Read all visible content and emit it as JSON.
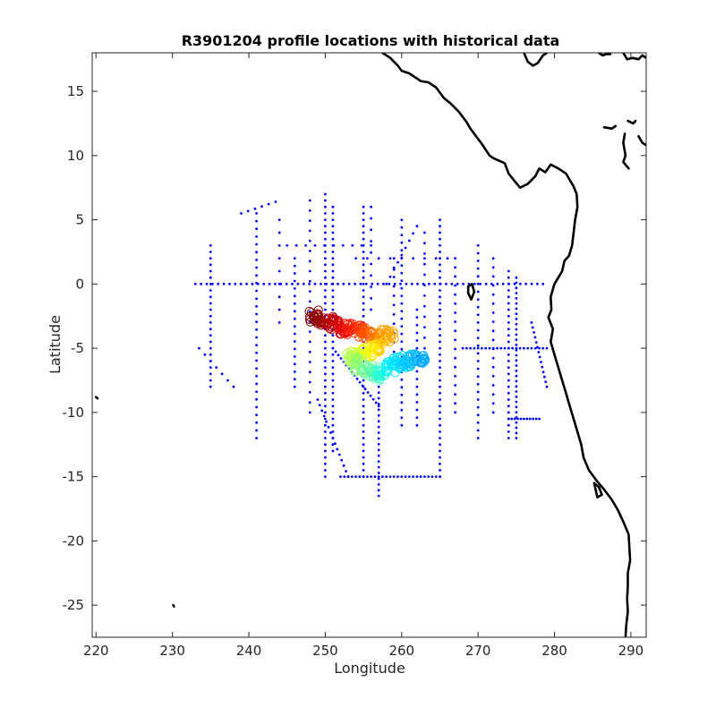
{
  "chart_data": {
    "type": "scatter",
    "title": "R3901204 profile locations with historical data",
    "xlabel": "Longitude",
    "ylabel": "Latitude",
    "xlim": [
      219.5,
      292
    ],
    "ylim": [
      -27.5,
      18
    ],
    "xticks": [
      220,
      230,
      240,
      250,
      260,
      270,
      280,
      290
    ],
    "yticks": [
      -25,
      -20,
      -15,
      -10,
      -5,
      0,
      5,
      10,
      15
    ],
    "grid": false,
    "colors": {
      "historical": "#0000ff",
      "coast": "#000000",
      "frame": "#262626"
    },
    "historical_lines": [
      {
        "from": [
          233.0,
          0.0
        ],
        "to": [
          278.5,
          0.0
        ],
        "step": 0.75
      },
      {
        "from": [
          250.0,
          7.0
        ],
        "to": [
          250.0,
          -15.0
        ],
        "step": 0.5
      },
      {
        "from": [
          251.0,
          6.0
        ],
        "to": [
          251.0,
          -13.0
        ],
        "step": 0.5
      },
      {
        "from": [
          255.0,
          6.0
        ],
        "to": [
          255.0,
          -15.0
        ],
        "step": 0.5
      },
      {
        "from": [
          265.0,
          5.0
        ],
        "to": [
          265.0,
          -15.0
        ],
        "step": 0.5
      },
      {
        "from": [
          275.0,
          0.5
        ],
        "to": [
          275.0,
          -12.0
        ],
        "step": 0.4
      },
      {
        "from": [
          241.0,
          5.5
        ],
        "to": [
          241.0,
          -12.0
        ],
        "step": 0.6
      },
      {
        "from": [
          235.0,
          3.0
        ],
        "to": [
          235.0,
          -8.0
        ],
        "step": 0.5
      },
      {
        "from": [
          246.0,
          2.0
        ],
        "to": [
          246.0,
          -8.0
        ],
        "step": 0.6
      },
      {
        "from": [
          260.0,
          5.0
        ],
        "to": [
          260.0,
          -11.0
        ],
        "step": 0.6
      },
      {
        "from": [
          270.0,
          3.0
        ],
        "to": [
          270.0,
          -12.0
        ],
        "step": 0.6
      },
      {
        "from": [
          274.0,
          1.0
        ],
        "to": [
          274.0,
          -12.0
        ],
        "step": 0.5
      },
      {
        "from": [
          257.0,
          -8.0
        ],
        "to": [
          257.0,
          -16.5
        ],
        "step": 0.45
      },
      {
        "from": [
          252.0,
          -15.0
        ],
        "to": [
          265.0,
          -15.0
        ],
        "step": 0.5
      },
      {
        "from": [
          251.0,
          -5.0
        ],
        "to": [
          257.0,
          -9.5
        ],
        "step": 0.45
      },
      {
        "from": [
          249.0,
          -9.0
        ],
        "to": [
          253.0,
          -15.0
        ],
        "step": 0.5
      },
      {
        "from": [
          262.0,
          -2.0
        ],
        "to": [
          262.0,
          -11.0
        ],
        "step": 0.6
      },
      {
        "from": [
          267.0,
          2.0
        ],
        "to": [
          267.0,
          -10.0
        ],
        "step": 0.7
      },
      {
        "from": [
          268.0,
          -5.0
        ],
        "to": [
          279.0,
          -5.0
        ],
        "step": 0.5
      },
      {
        "from": [
          274.0,
          -10.5
        ],
        "to": [
          278.0,
          -10.5
        ],
        "step": 0.4
      },
      {
        "from": [
          245.0,
          3.0
        ],
        "to": [
          256.0,
          3.0
        ],
        "step": 1.2
      },
      {
        "from": [
          254.0,
          2.0
        ],
        "to": [
          266.0,
          2.0
        ],
        "step": 1.5
      },
      {
        "from": [
          248.0,
          6.5
        ],
        "to": [
          248.0,
          -10.0
        ],
        "step": 0.8
      },
      {
        "from": [
          259.0,
          2.0
        ],
        "to": [
          259.0,
          -6.0
        ],
        "step": 0.7
      },
      {
        "from": [
          272.0,
          2.0
        ],
        "to": [
          272.0,
          -10.0
        ],
        "step": 0.7
      },
      {
        "from": [
          277.0,
          -3.0
        ],
        "to": [
          279.0,
          -8.0
        ],
        "step": 0.4
      },
      {
        "from": [
          263.0,
          4.0
        ],
        "to": [
          263.0,
          -5.0
        ],
        "step": 0.8
      },
      {
        "from": [
          239.0,
          5.5
        ],
        "to": [
          243.5,
          6.4
        ],
        "step": 1.0
      },
      {
        "from": [
          233.5,
          -5.0
        ],
        "to": [
          238.0,
          -8.0
        ],
        "step": 0.9
      },
      {
        "from": [
          256.0,
          6.0
        ],
        "to": [
          256.0,
          -2.0
        ],
        "step": 0.9
      },
      {
        "from": [
          244.0,
          5.0
        ],
        "to": [
          244.0,
          -3.0
        ],
        "step": 1.0
      },
      {
        "from": [
          258.0,
          0.0
        ],
        "to": [
          262.0,
          4.5
        ],
        "step": 0.8
      }
    ],
    "profile_track": [
      {
        "lon": 248.5,
        "lat": -2.5,
        "color": "#800000"
      },
      {
        "lon": 249.5,
        "lat": -2.8,
        "color": "#990000"
      },
      {
        "lon": 250.5,
        "lat": -3.0,
        "color": "#b30000"
      },
      {
        "lon": 251.5,
        "lat": -3.2,
        "color": "#cc0000"
      },
      {
        "lon": 252.5,
        "lat": -3.4,
        "color": "#e60000"
      },
      {
        "lon": 253.5,
        "lat": -3.5,
        "color": "#ff1a00"
      },
      {
        "lon": 254.5,
        "lat": -3.7,
        "color": "#ff3300"
      },
      {
        "lon": 255.5,
        "lat": -3.8,
        "color": "#ff5500"
      },
      {
        "lon": 256.5,
        "lat": -3.9,
        "color": "#ff7700"
      },
      {
        "lon": 257.5,
        "lat": -4.0,
        "color": "#ff9900"
      },
      {
        "lon": 258.5,
        "lat": -4.1,
        "color": "#ffaa00"
      },
      {
        "lon": 257.0,
        "lat": -4.8,
        "color": "#ffcc00"
      },
      {
        "lon": 256.0,
        "lat": -5.2,
        "color": "#ffee00"
      },
      {
        "lon": 255.0,
        "lat": -5.4,
        "color": "#eeff10"
      },
      {
        "lon": 254.0,
        "lat": -5.5,
        "color": "#ccff33"
      },
      {
        "lon": 253.5,
        "lat": -5.9,
        "color": "#aaff55"
      },
      {
        "lon": 254.5,
        "lat": -6.3,
        "color": "#88ff77"
      },
      {
        "lon": 255.5,
        "lat": -6.7,
        "color": "#66ff99"
      },
      {
        "lon": 256.5,
        "lat": -7.0,
        "color": "#44ffbb"
      },
      {
        "lon": 257.5,
        "lat": -6.8,
        "color": "#22ffdd"
      },
      {
        "lon": 258.5,
        "lat": -6.4,
        "color": "#00eeff"
      },
      {
        "lon": 259.5,
        "lat": -6.1,
        "color": "#00ddff"
      },
      {
        "lon": 260.5,
        "lat": -6.0,
        "color": "#00ccff"
      },
      {
        "lon": 261.5,
        "lat": -5.9,
        "color": "#00bbff"
      },
      {
        "lon": 262.5,
        "lat": -5.8,
        "color": "#00aaff"
      }
    ],
    "coastlines": [
      [
        [
          257.5,
          18.0
        ],
        [
          258.5,
          17.6
        ],
        [
          259.5,
          17.0
        ],
        [
          260.0,
          16.6
        ],
        [
          261.0,
          16.4
        ],
        [
          262.0,
          16.0
        ],
        [
          262.5,
          15.8
        ],
        [
          263.5,
          15.7
        ],
        [
          264.5,
          15.3
        ],
        [
          265.5,
          14.5
        ],
        [
          266.5,
          14.0
        ],
        [
          267.5,
          13.4
        ],
        [
          268.5,
          12.6
        ],
        [
          269.0,
          12.1
        ],
        [
          270.5,
          10.9
        ],
        [
          271.5,
          10.0
        ],
        [
          272.0,
          9.8
        ],
        [
          273.5,
          9.4
        ],
        [
          274.0,
          8.6
        ],
        [
          274.8,
          8.0
        ],
        [
          275.5,
          7.5
        ],
        [
          276.5,
          7.8
        ],
        [
          277.5,
          8.4
        ],
        [
          278.0,
          9.0
        ],
        [
          278.8,
          8.7
        ],
        [
          279.5,
          9.3
        ],
        [
          280.5,
          9.0
        ],
        [
          281.5,
          8.6
        ],
        [
          282.0,
          8.1
        ],
        [
          282.5,
          7.6
        ],
        [
          282.9,
          7.0
        ],
        [
          283.0,
          6.0
        ],
        [
          282.7,
          5.0
        ],
        [
          282.5,
          4.0
        ],
        [
          282.3,
          3.0
        ],
        [
          281.9,
          2.2
        ],
        [
          281.3,
          1.8
        ],
        [
          281.0,
          1.0
        ],
        [
          280.5,
          0.5
        ],
        [
          280.0,
          0.0
        ],
        [
          279.5,
          -1.0
        ],
        [
          279.6,
          -2.0
        ],
        [
          279.2,
          -2.6
        ],
        [
          279.8,
          -3.5
        ],
        [
          279.5,
          -4.5
        ],
        [
          280.0,
          -5.5
        ],
        [
          280.5,
          -6.5
        ],
        [
          281.0,
          -7.5
        ],
        [
          281.5,
          -8.5
        ],
        [
          282.0,
          -9.5
        ],
        [
          282.5,
          -10.5
        ],
        [
          283.0,
          -11.5
        ],
        [
          283.5,
          -12.5
        ],
        [
          283.8,
          -13.5
        ],
        [
          284.5,
          -14.5
        ],
        [
          285.5,
          -15.3
        ],
        [
          286.5,
          -16.0
        ],
        [
          287.5,
          -16.8
        ],
        [
          288.3,
          -17.6
        ],
        [
          289.0,
          -18.5
        ],
        [
          289.7,
          -19.5
        ],
        [
          289.8,
          -20.5
        ],
        [
          289.9,
          -21.5
        ],
        [
          289.6,
          -22.5
        ],
        [
          289.6,
          -23.5
        ],
        [
          289.5,
          -24.5
        ],
        [
          289.6,
          -25.5
        ],
        [
          289.4,
          -26.5
        ],
        [
          289.3,
          -27.5
        ]
      ],
      [
        [
          289.0,
          18.0
        ],
        [
          289.5,
          17.5
        ],
        [
          290.2,
          17.6
        ],
        [
          291.0,
          17.5
        ],
        [
          291.5,
          17.8
        ],
        [
          292.0,
          17.6
        ]
      ],
      [
        [
          285.8,
          18.0
        ],
        [
          286.3,
          17.8
        ],
        [
          286.8,
          17.9
        ],
        [
          287.3,
          17.9
        ]
      ],
      [
        [
          276.0,
          18.0
        ],
        [
          276.5,
          17.3
        ],
        [
          277.2,
          17.0
        ],
        [
          277.8,
          17.2
        ],
        [
          278.5,
          17.8
        ],
        [
          279.0,
          18.0
        ]
      ],
      [
        [
          286.5,
          12.2
        ],
        [
          287.5,
          12.1
        ],
        [
          288.0,
          12.3
        ]
      ],
      [
        [
          289.6,
          12.7
        ],
        [
          290.3,
          12.5
        ],
        [
          290.6,
          12.7
        ]
      ],
      [
        [
          291.0,
          11.5
        ],
        [
          291.5,
          11.0
        ],
        [
          292.0,
          10.8
        ]
      ],
      [
        [
          289.2,
          11.7
        ],
        [
          289.0,
          11.0
        ],
        [
          289.3,
          10.0
        ],
        [
          289.0,
          9.5
        ],
        [
          289.7,
          9.0
        ]
      ],
      [
        [
          268.7,
          -0.2
        ],
        [
          269.2,
          0.0
        ],
        [
          269.5,
          -0.6
        ],
        [
          269.1,
          -1.2
        ],
        [
          268.7,
          -0.7
        ],
        [
          268.7,
          -0.2
        ]
      ],
      [
        [
          285.2,
          -15.5
        ],
        [
          285.8,
          -15.8
        ],
        [
          286.2,
          -16.4
        ],
        [
          285.6,
          -16.6
        ],
        [
          285.2,
          -15.5
        ]
      ],
      [
        [
          220.0,
          -8.8
        ],
        [
          220.2,
          -8.9
        ]
      ],
      [
        [
          230.1,
          -25.0
        ],
        [
          230.2,
          -25.1
        ]
      ]
    ]
  }
}
